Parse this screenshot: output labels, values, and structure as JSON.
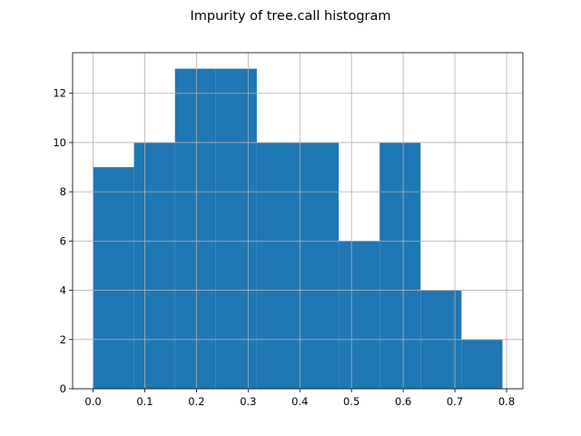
{
  "chart_data": {
    "type": "bar",
    "subtype": "histogram",
    "title": "Impurity of tree.call histogram",
    "xlabel": "",
    "ylabel": "",
    "bin_edges": [
      0.0,
      0.0792,
      0.1584,
      0.2376,
      0.3168,
      0.396,
      0.4752,
      0.5544,
      0.6336,
      0.7128,
      0.792
    ],
    "counts": [
      9,
      10,
      13,
      13,
      10,
      10,
      6,
      10,
      4,
      2
    ],
    "xlim": [
      -0.0396,
      0.8316
    ],
    "ylim": [
      0,
      13.65
    ],
    "xticks": [
      0.0,
      0.1,
      0.2,
      0.3,
      0.4,
      0.5,
      0.6,
      0.7,
      0.8
    ],
    "xtick_labels": [
      "0.0",
      "0.1",
      "0.2",
      "0.3",
      "0.4",
      "0.5",
      "0.6",
      "0.7",
      "0.8"
    ],
    "yticks": [
      0,
      2,
      4,
      6,
      8,
      10,
      12
    ],
    "ytick_labels": [
      "0",
      "2",
      "4",
      "6",
      "8",
      "10",
      "12"
    ],
    "grid": true,
    "bar_color": "#1f77b4",
    "grid_color": "#b0b0b0"
  }
}
